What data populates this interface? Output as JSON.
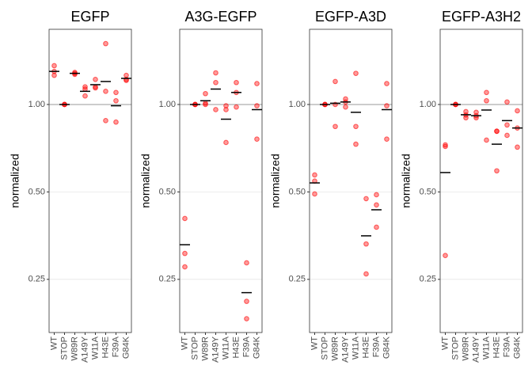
{
  "chart_data": [
    {
      "type": "dot",
      "title": "EGFP",
      "ylabel": "normalized",
      "log_scale": true,
      "grid": true,
      "reference_line": 1,
      "color": "#ff0000",
      "mean_color": "#000000",
      "categories": [
        "WT",
        "STOP",
        "W89R",
        "A149Y",
        "W11A",
        "H43E",
        "F39A",
        "G84K"
      ],
      "points": [
        [
          1.36,
          1.3,
          1.26
        ],
        [
          1,
          1,
          1
        ],
        [
          1.29,
          1.28,
          1.27
        ],
        [
          1.15,
          1.13,
          1.07
        ],
        [
          1.22,
          1.15,
          1.14
        ],
        [
          1.62,
          1.11,
          0.88
        ],
        [
          1.1,
          1.03,
          0.87
        ],
        [
          1.26,
          1.22,
          1.21
        ]
      ],
      "means": [
        1.3,
        1,
        1.28,
        1.11,
        1.17,
        1.2,
        0.99,
        1.23
      ],
      "ylim": [
        0.164,
        1.815
      ],
      "yticks": [
        {
          "value": 0.25,
          "label": "0.25"
        },
        {
          "value": 0.5,
          "label": "0.50"
        },
        {
          "value": 1,
          "label": "1.00"
        }
      ]
    },
    {
      "type": "dot",
      "title": "A3G-EGFP",
      "ylabel": "normalized",
      "log_scale": true,
      "grid": true,
      "reference_line": 1,
      "color": "#ff0000",
      "mean_color": "#000000",
      "categories": [
        "WT",
        "STOP",
        "W89R",
        "A149Y",
        "W11A",
        "H43E",
        "F39A",
        "G84K"
      ],
      "points": [
        [
          0.405,
          0.307,
          0.276
        ],
        [
          1,
          1,
          1
        ],
        [
          1.09,
          1.01,
          1.0
        ],
        [
          1.285,
          1.19,
          0.96
        ],
        [
          0.99,
          0.96,
          0.74
        ],
        [
          1.19,
          1.1,
          0.98
        ],
        [
          0.285,
          0.21,
          0.183
        ],
        [
          1.18,
          0.99,
          0.76
        ]
      ],
      "means": [
        0.329,
        1,
        1.03,
        1.13,
        0.89,
        1.1,
        0.225,
        0.96
      ],
      "ylim": [
        0.164,
        1.815
      ],
      "yticks": [
        {
          "value": 0.25,
          "label": "0.25"
        },
        {
          "value": 0.5,
          "label": "0.50"
        },
        {
          "value": 1,
          "label": "1.00"
        }
      ]
    },
    {
      "type": "dot",
      "title": "EGFP-A3D",
      "ylabel": "normalized",
      "log_scale": true,
      "grid": true,
      "reference_line": 1,
      "color": "#ff0000",
      "mean_color": "#000000",
      "categories": [
        "WT",
        "STOP",
        "W89R",
        "A149Y",
        "W11A",
        "H43E",
        "F39A",
        "G84K"
      ],
      "points": [
        [
          0.572,
          0.545,
          0.492
        ],
        [
          1,
          1,
          1
        ],
        [
          1.2,
          1.0,
          0.84
        ],
        [
          1.045,
          1.02,
          0.98
        ],
        [
          1.28,
          0.84,
          0.73
        ],
        [
          0.474,
          0.331,
          0.261
        ],
        [
          0.489,
          0.451,
          0.378
        ],
        [
          1.18,
          0.99,
          0.76
        ]
      ],
      "means": [
        0.537,
        1,
        1.01,
        1.02,
        0.94,
        0.353,
        0.434,
        0.96
      ],
      "ylim": [
        0.164,
        1.815
      ],
      "yticks": [
        {
          "value": 0.25,
          "label": "0.25"
        },
        {
          "value": 0.5,
          "label": "0.50"
        },
        {
          "value": 1,
          "label": "1.00"
        }
      ]
    },
    {
      "type": "dot",
      "title": "EGFP-A3H2",
      "ylabel": "normalized",
      "log_scale": true,
      "grid": true,
      "reference_line": 1,
      "color": "#ff0000",
      "mean_color": "#000000",
      "categories": [
        "WT",
        "STOP",
        "W89R",
        "A149Y",
        "W11A",
        "H43E",
        "F39A",
        "G84K"
      ],
      "points": [
        [
          0.726,
          0.717,
          0.302
        ],
        [
          1,
          1,
          1
        ],
        [
          0.945,
          0.92,
          0.9
        ],
        [
          0.94,
          0.915,
          0.9
        ],
        [
          1.1,
          1.03,
          0.754
        ],
        [
          0.81,
          0.808,
          0.591
        ],
        [
          1.02,
          0.85,
          0.783
        ],
        [
          0.951,
          0.83,
          0.713
        ]
      ],
      "means": [
        0.583,
        1,
        0.922,
        0.915,
        0.957,
        0.73,
        0.88,
        0.83
      ],
      "ylim": [
        0.164,
        1.815
      ],
      "yticks": [
        {
          "value": 0.25,
          "label": "0.25"
        },
        {
          "value": 0.5,
          "label": "0.50"
        },
        {
          "value": 1,
          "label": "1.00"
        }
      ]
    }
  ]
}
